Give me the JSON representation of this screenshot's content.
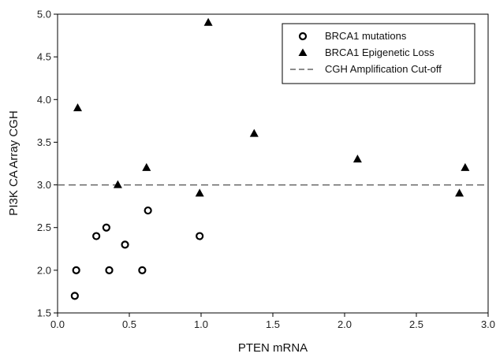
{
  "chart_data": {
    "type": "scatter",
    "title": "",
    "xlabel": "PTEN mRNA",
    "ylabel": "PI3K CA Array CGH",
    "xlim": [
      0.0,
      3.0
    ],
    "ylim": [
      1.5,
      5.0
    ],
    "x_ticks": [
      "0.0",
      "0.5",
      "1.0",
      "1.5",
      "2.0",
      "2.5",
      "3.0"
    ],
    "y_ticks": [
      "1.5",
      "2.0",
      "2.5",
      "3.0",
      "3.5",
      "4.0",
      "4.5",
      "5.0"
    ],
    "grid": false,
    "legend_position": "top-right",
    "series": [
      {
        "name": "BRCA1 mutations",
        "marker": "open-circle",
        "color": "#000000",
        "points": [
          {
            "x": 0.13,
            "y": 2.0
          },
          {
            "x": 0.12,
            "y": 1.7
          },
          {
            "x": 0.27,
            "y": 2.4
          },
          {
            "x": 0.34,
            "y": 2.5
          },
          {
            "x": 0.36,
            "y": 2.0
          },
          {
            "x": 0.47,
            "y": 2.3
          },
          {
            "x": 0.59,
            "y": 2.0
          },
          {
            "x": 0.63,
            "y": 2.7
          },
          {
            "x": 0.99,
            "y": 2.4
          }
        ]
      },
      {
        "name": "BRCA1 Epigenetic Loss",
        "marker": "filled-triangle",
        "color": "#000000",
        "points": [
          {
            "x": 0.14,
            "y": 3.9
          },
          {
            "x": 0.42,
            "y": 3.0
          },
          {
            "x": 0.62,
            "y": 3.2
          },
          {
            "x": 0.99,
            "y": 2.9
          },
          {
            "x": 1.05,
            "y": 4.9
          },
          {
            "x": 1.37,
            "y": 3.6
          },
          {
            "x": 2.09,
            "y": 3.3
          },
          {
            "x": 2.8,
            "y": 2.9
          },
          {
            "x": 2.84,
            "y": 3.2
          }
        ]
      }
    ],
    "reference_lines": [
      {
        "name": "CGH Amplification Cut-off",
        "orientation": "horizontal",
        "y": 3.0,
        "style": "dashed",
        "color": "#666666"
      }
    ]
  }
}
